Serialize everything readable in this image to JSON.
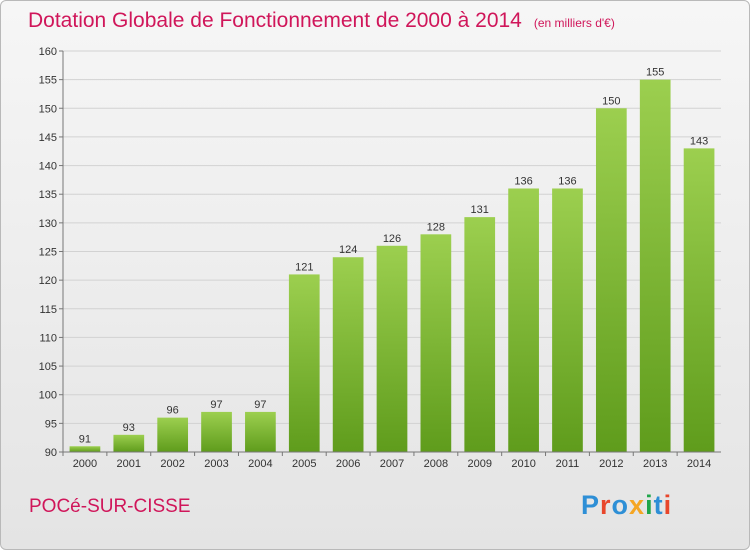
{
  "title": "Dotation Globale de Fonctionnement de 2000 à 2014",
  "unit_note": "(en milliers d'€)",
  "commune": "POCé-SUR-CISSE",
  "logo": {
    "text": "Proxiti",
    "colors": [
      "#2e8fd6",
      "#e8462b",
      "#2e8fd6",
      "#f5a623",
      "#1fa64a",
      "#2e8fd6",
      "#e8462b"
    ]
  },
  "colors": {
    "accent": "#d0165a",
    "bar_top": "#9ccf4f",
    "bar_bottom": "#5f9c1c"
  },
  "chart_data": {
    "type": "bar",
    "title": "Dotation Globale de Fonctionnement de 2000 à 2014",
    "subtitle": "(en milliers d'€)",
    "xlabel": "",
    "ylabel": "",
    "categories": [
      "2000",
      "2001",
      "2002",
      "2003",
      "2004",
      "2005",
      "2006",
      "2007",
      "2008",
      "2009",
      "2010",
      "2011",
      "2012",
      "2013",
      "2014"
    ],
    "values": [
      91,
      93,
      96,
      97,
      97,
      121,
      124,
      126,
      128,
      131,
      136,
      136,
      150,
      155,
      143
    ],
    "ylim": [
      90,
      160
    ],
    "yticks": [
      90,
      95,
      100,
      105,
      110,
      115,
      120,
      125,
      130,
      135,
      140,
      145,
      150,
      155,
      160
    ],
    "grid": true,
    "data_labels": true
  }
}
